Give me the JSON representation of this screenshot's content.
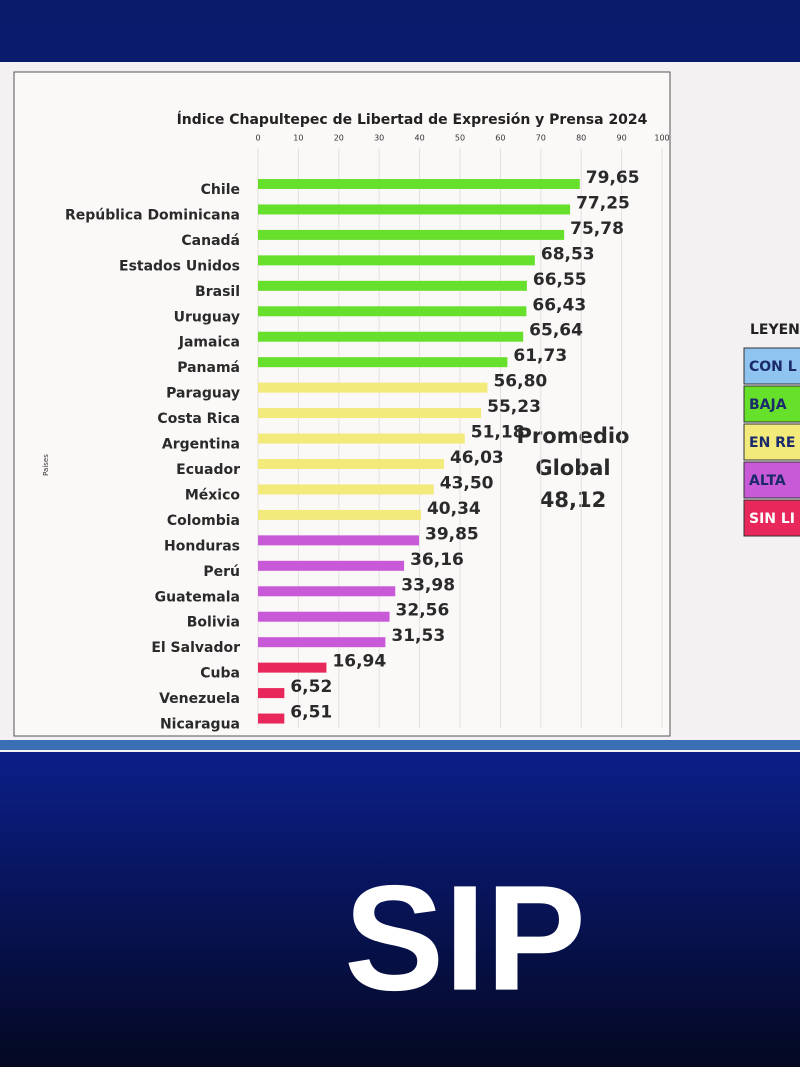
{
  "chart_data": {
    "type": "hbar",
    "title": "Índice Chapultepec de Libertad de Expresión y Prensa 2024",
    "y_label": "Países",
    "categories": [
      "Chile",
      "República Dominicana",
      "Canadá",
      "Estados Unidos",
      "Brasil",
      "Uruguay",
      "Jamaica",
      "Panamá",
      "Paraguay",
      "Costa Rica",
      "Argentina",
      "Ecuador",
      "México",
      "Colombia",
      "Honduras",
      "Perú",
      "Guatemala",
      "Bolivia",
      "El Salvador",
      "Cuba",
      "Venezuela",
      "Nicaragua"
    ],
    "values": [
      79.65,
      77.25,
      75.78,
      68.53,
      66.55,
      66.43,
      65.64,
      61.73,
      56.8,
      55.23,
      51.18,
      46.03,
      43.5,
      40.34,
      39.85,
      36.16,
      33.98,
      32.56,
      31.53,
      16.94,
      6.52,
      6.51
    ],
    "value_labels": [
      "79,65",
      "77,25",
      "75,78",
      "68,53",
      "66,55",
      "66,43",
      "65,64",
      "61,73",
      "56,80",
      "55,23",
      "51,18",
      "46,03",
      "43,50",
      "40,34",
      "39,85",
      "36,16",
      "33,98",
      "32,56",
      "31,53",
      "16,94",
      "6,52",
      "6,51"
    ],
    "colors": [
      "#66e02a",
      "#66e02a",
      "#66e02a",
      "#66e02a",
      "#66e02a",
      "#66e02a",
      "#66e02a",
      "#66e02a",
      "#f2ea7a",
      "#f2ea7a",
      "#f2ea7a",
      "#f2ea7a",
      "#f2ea7a",
      "#f2ea7a",
      "#c85ad8",
      "#c85ad8",
      "#c85ad8",
      "#c85ad8",
      "#c85ad8",
      "#e8285a",
      "#e8285a",
      "#e8285a"
    ],
    "xlim": [
      0,
      100
    ],
    "xticks": [
      0,
      10,
      20,
      30,
      40,
      50,
      60,
      70,
      80,
      90,
      100
    ],
    "grid": true,
    "annotation": [
      "Promedio",
      "Global",
      "48,12"
    ],
    "legend": {
      "title": "LEYEN",
      "items": [
        {
          "label": "CON L",
          "color": "#8fc4f0"
        },
        {
          "label": "BAJA",
          "color": "#66e02a"
        },
        {
          "label": "EN RE",
          "color": "#f2ea7a"
        },
        {
          "label": "ALTA",
          "color": "#c85ad8"
        },
        {
          "label": "SIN LI",
          "color": "#e8285a"
        }
      ]
    }
  },
  "logo": "SIP"
}
